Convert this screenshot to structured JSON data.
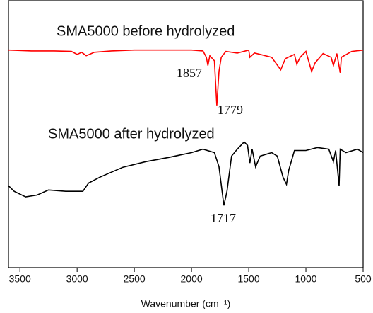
{
  "chart_data": {
    "type": "line",
    "xlabel": "Wavenumber (cm⁻¹)",
    "xlim": [
      3600,
      500
    ],
    "xticks": [
      3500,
      3000,
      2500,
      2000,
      1500,
      1000,
      500
    ],
    "ylim": [
      0,
      100
    ],
    "series": [
      {
        "name": "SMA5000 before hydrolyzed",
        "color": "#ff0000",
        "x": [
          3600,
          3400,
          3200,
          3050,
          3000,
          2960,
          2920,
          2850,
          2700,
          2500,
          2000,
          1900,
          1870,
          1857,
          1840,
          1800,
          1779,
          1760,
          1740,
          1700,
          1600,
          1500,
          1490,
          1450,
          1400,
          1300,
          1220,
          1180,
          1100,
          1080,
          1050,
          1000,
          950,
          920,
          850,
          780,
          760,
          730,
          700,
          690,
          600,
          500
        ],
        "values": [
          81.5,
          81.2,
          81.2,
          81.0,
          79.9,
          80.7,
          79.4,
          80.7,
          81.2,
          81.5,
          81.5,
          81.2,
          78.8,
          75.7,
          79.4,
          77.5,
          60.8,
          73.5,
          78.8,
          81.0,
          80.4,
          81.5,
          78.8,
          80.4,
          79.9,
          78.8,
          74.1,
          78.3,
          79.9,
          76.2,
          78.8,
          81.0,
          73.5,
          76.7,
          80.2,
          78.8,
          75.7,
          80.2,
          73.0,
          78.8,
          81.0,
          81.5
        ]
      },
      {
        "name": "SMA5000 after hydrolyzed",
        "color": "#000000",
        "x": [
          3600,
          3550,
          3450,
          3350,
          3250,
          3100,
          2950,
          2900,
          2800,
          2600,
          2400,
          2200,
          2000,
          1900,
          1800,
          1760,
          1717,
          1690,
          1650,
          1600,
          1540,
          1510,
          1490,
          1470,
          1440,
          1400,
          1300,
          1250,
          1200,
          1170,
          1150,
          1100,
          1000,
          900,
          800,
          760,
          740,
          710,
          700,
          650,
          550,
          500
        ],
        "values": [
          30.7,
          28.6,
          26.5,
          27.2,
          29.1,
          28.6,
          28.6,
          31.7,
          33.9,
          37.6,
          39.7,
          41.3,
          43.1,
          44.4,
          43.1,
          37.8,
          23.3,
          28.6,
          41.8,
          44.4,
          47.1,
          45.8,
          39.2,
          44.4,
          37.8,
          41.8,
          43.1,
          41.8,
          33.9,
          31.2,
          36.5,
          43.9,
          43.9,
          45.0,
          44.4,
          39.7,
          43.9,
          30.7,
          44.4,
          43.1,
          44.4,
          43.1
        ]
      }
    ],
    "annotations": [
      "1857",
      "1779",
      "1717"
    ]
  }
}
